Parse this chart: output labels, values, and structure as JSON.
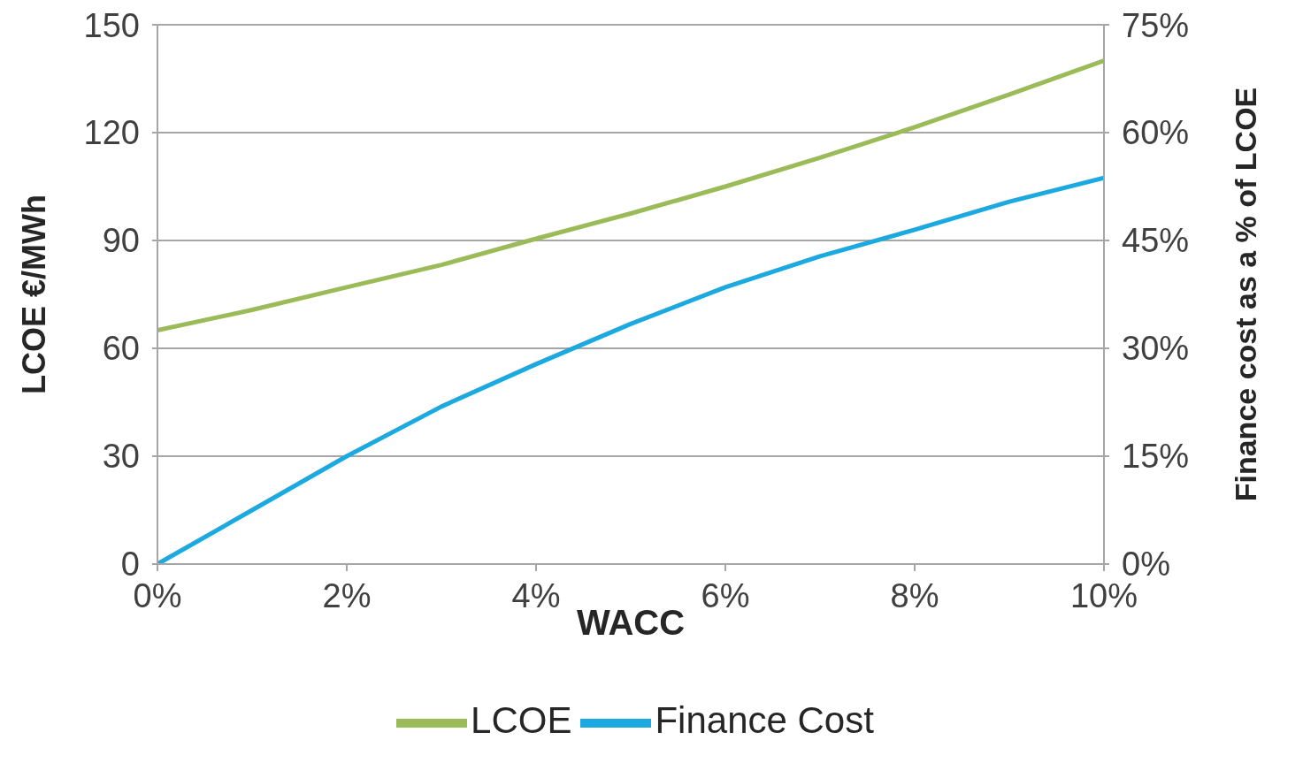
{
  "chart_data": {
    "type": "line",
    "xlabel": "WACC",
    "ylabel": "LCOE €/MWh",
    "y2label": "Finance cost as a % of LCOE",
    "x": [
      0,
      1,
      2,
      3,
      4,
      5,
      6,
      7,
      8,
      9,
      10
    ],
    "series": [
      {
        "name": "LCOE",
        "color": "#9bbb59",
        "values": [
          65,
          70.7,
          77,
          83.2,
          90.5,
          97.5,
          105,
          113,
          121.5,
          130.6,
          140
        ]
      },
      {
        "name": "Finance Cost",
        "color": "#1ca9e0",
        "axis": "y2",
        "values": [
          0,
          7.5,
          15,
          21.9,
          27.8,
          33.4,
          38.5,
          42.8,
          46.5,
          50.4,
          53.7
        ]
      }
    ],
    "xlim": [
      0,
      10
    ],
    "xticks": [
      {
        "value": 0,
        "label": "0%"
      },
      {
        "value": 2,
        "label": "2%"
      },
      {
        "value": 4,
        "label": "4%"
      },
      {
        "value": 6,
        "label": "6%"
      },
      {
        "value": 8,
        "label": "8%"
      },
      {
        "value": 10,
        "label": "10%"
      }
    ],
    "ylim": [
      0,
      150
    ],
    "yticks": [
      0,
      30,
      60,
      90,
      120,
      150
    ],
    "y2lim": [
      0,
      75
    ],
    "y2ticks": [
      {
        "value": 0,
        "label": "0%"
      },
      {
        "value": 15,
        "label": "15%"
      },
      {
        "value": 30,
        "label": "30%"
      },
      {
        "value": 45,
        "label": "45%"
      },
      {
        "value": 60,
        "label": "60%"
      },
      {
        "value": 75,
        "label": "75%"
      }
    ],
    "grid": "y",
    "legend": "bottom"
  }
}
